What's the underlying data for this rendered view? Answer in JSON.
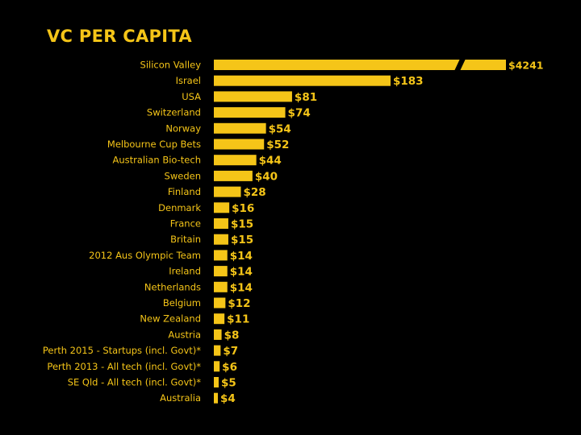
{
  "chart_data": {
    "type": "bar",
    "orientation": "horizontal",
    "title": "VC PER CAPITA",
    "xlabel": "",
    "ylabel": "",
    "axis_break": true,
    "grid": false,
    "colors": {
      "background": "#000000",
      "bar": "#f5c518",
      "text": "#f5c518"
    },
    "categories": [
      "Silicon Valley",
      "Israel",
      "USA",
      "Switzerland",
      "Norway",
      "Melbourne Cup Bets",
      "Australian Bio-tech",
      "Sweden",
      "Finland",
      "Denmark",
      "France",
      "Britain",
      "2012 Aus Olympic Team",
      "Ireland",
      "Netherlands",
      "Belgium",
      "New Zealand",
      "Austria",
      "Perth 2015 - Startups (incl. Govt)*",
      "Perth 2013 - All tech (incl. Govt)*",
      "SE Qld - All tech (incl. Govt)*",
      "Australia"
    ],
    "values": [
      4241,
      183,
      81,
      74,
      54,
      52,
      44,
      40,
      28,
      16,
      15,
      15,
      14,
      14,
      14,
      12,
      11,
      8,
      7,
      6,
      5,
      4
    ],
    "value_labels": [
      "$4241",
      "$183",
      "$81",
      "$74",
      "$54",
      "$52",
      "$44",
      "$40",
      "$28",
      "$16",
      "$15",
      "$15",
      "$14",
      "$14",
      "$14",
      "$12",
      "$11",
      "$8",
      "$7",
      "$6",
      "$5",
      "$4"
    ]
  }
}
